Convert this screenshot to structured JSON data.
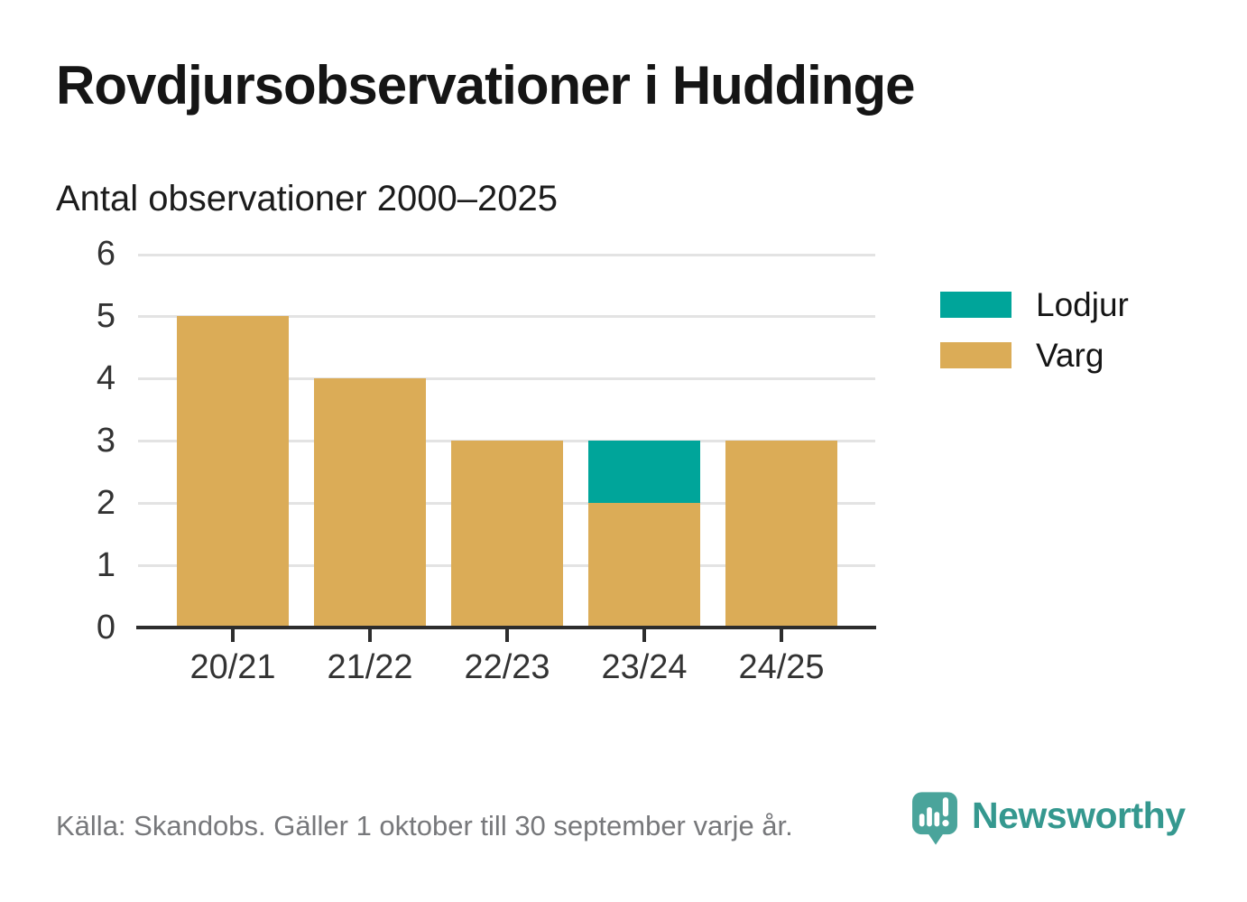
{
  "header": {
    "title": "Rovdjursobservationer i Huddinge",
    "subtitle": "Antal observationer 2000–2025"
  },
  "chart_data": {
    "type": "bar",
    "stacked": true,
    "title": "Rovdjursobservationer i Huddinge",
    "subtitle": "Antal observationer 2000–2025",
    "xlabel": "",
    "ylabel": "",
    "categories": [
      "20/21",
      "21/22",
      "22/23",
      "23/24",
      "24/25"
    ],
    "series": [
      {
        "name": "Lodjur",
        "color": "#00a59a",
        "values": [
          0,
          0,
          0,
          1,
          0
        ]
      },
      {
        "name": "Varg",
        "color": "#dbac57",
        "values": [
          5,
          4,
          3,
          2,
          3
        ]
      }
    ],
    "totals": [
      5,
      4,
      3,
      3,
      3
    ],
    "ylim": [
      0,
      6
    ],
    "yticks": [
      0,
      1,
      2,
      3,
      4,
      5,
      6
    ],
    "grid": true,
    "legend_position": "right"
  },
  "legend": {
    "items": [
      {
        "label": "Lodjur",
        "color": "#00a59a"
      },
      {
        "label": "Varg",
        "color": "#dbac57"
      }
    ]
  },
  "footer": {
    "source": "Källa: Skandobs. Gäller 1 oktober till 30 september varje år.",
    "brand": "Newsworthy",
    "brand_color": "#35988f",
    "logo_icon": "newsworthy-speech-bubble-bar-chart-icon"
  },
  "colors": {
    "lodjur": "#00a59a",
    "varg": "#dbac57",
    "axis": "#2d2d2d",
    "gridline": "#e3e3e3",
    "text": "#151515",
    "axis_text": "#333333",
    "muted_text": "#77787b",
    "logo_bubble": "#4aa49b"
  }
}
